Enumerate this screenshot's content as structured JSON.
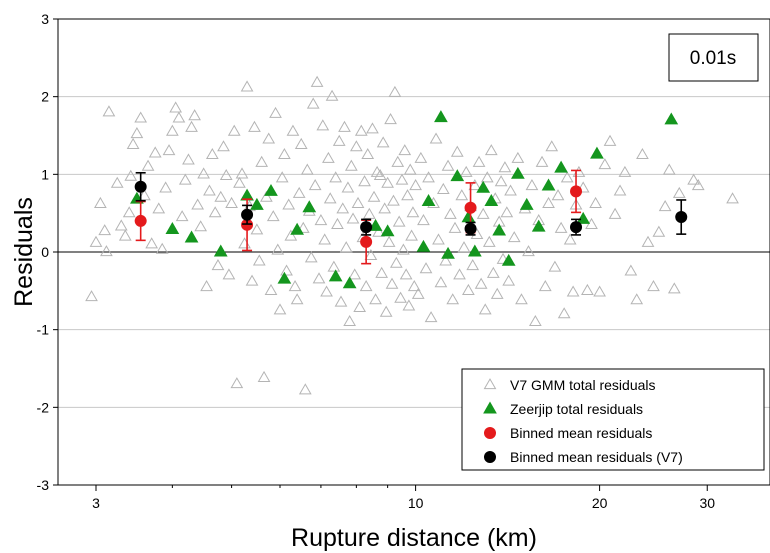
{
  "chart_data": {
    "type": "scatter",
    "period_label": "0.01s",
    "xlabel": "Rupture distance (km)",
    "ylabel": "Residuals",
    "x_scale": "log",
    "xlim": [
      2.6,
      38
    ],
    "ylim": [
      -3,
      3
    ],
    "x_ticks": [
      3,
      10,
      20,
      30
    ],
    "x_tick_labels": [
      "3",
      "10",
      "20",
      "30"
    ],
    "y_ticks": [
      -3,
      -2,
      -1,
      0,
      1,
      2,
      3
    ],
    "y_tick_labels": [
      "-3",
      "-2",
      "-1",
      "0",
      "1",
      "2",
      "3"
    ],
    "grid": "horizontal",
    "legend_position": "bottom-right",
    "legend": [
      {
        "label": "V7 GMM total residuals",
        "marker": "open-triangle",
        "color": "#b4b4b4"
      },
      {
        "label": "Zeerjip total residuals",
        "marker": "filled-triangle",
        "color": "#14961e"
      },
      {
        "label": "Binned mean residuals",
        "marker": "circle",
        "color": "#e41a1c"
      },
      {
        "label": "Binned mean residuals (V7)",
        "marker": "circle",
        "color": "#000000"
      }
    ],
    "series": [
      {
        "name": "Zeerjip total residuals",
        "style": "filled-triangle",
        "color": "#14961e",
        "points": [
          [
            3.5,
            0.68
          ],
          [
            4.0,
            0.29
          ],
          [
            4.3,
            0.18
          ],
          [
            4.8,
            0.0
          ],
          [
            5.3,
            0.72
          ],
          [
            5.5,
            0.6
          ],
          [
            5.8,
            0.78
          ],
          [
            6.1,
            -0.35
          ],
          [
            6.4,
            0.28
          ],
          [
            6.7,
            0.57
          ],
          [
            7.4,
            -0.32
          ],
          [
            7.8,
            -0.41
          ],
          [
            8.6,
            0.33
          ],
          [
            9.0,
            0.26
          ],
          [
            10.3,
            0.06
          ],
          [
            10.5,
            0.65
          ],
          [
            11.0,
            1.73
          ],
          [
            11.3,
            -0.03
          ],
          [
            11.7,
            0.97
          ],
          [
            12.2,
            0.44
          ],
          [
            12.5,
            0.0
          ],
          [
            12.9,
            0.82
          ],
          [
            13.3,
            0.65
          ],
          [
            13.7,
            0.27
          ],
          [
            14.2,
            -0.12
          ],
          [
            14.7,
            1.0
          ],
          [
            15.2,
            0.6
          ],
          [
            15.9,
            0.32
          ],
          [
            16.5,
            0.85
          ],
          [
            17.3,
            1.08
          ],
          [
            18.8,
            0.42
          ],
          [
            19.8,
            1.26
          ],
          [
            26.2,
            1.7
          ]
        ]
      },
      {
        "name": "Binned mean residuals",
        "style": "circle-errorbar",
        "color": "#e41a1c",
        "points": [
          {
            "x": 3.55,
            "y": 0.4,
            "err": 0.25
          },
          {
            "x": 5.3,
            "y": 0.35,
            "err": 0.33
          },
          {
            "x": 8.3,
            "y": 0.13,
            "err": 0.28
          },
          {
            "x": 12.3,
            "y": 0.57,
            "err": 0.32
          },
          {
            "x": 18.3,
            "y": 0.78,
            "err": 0.27
          }
        ]
      },
      {
        "name": "Binned mean residuals (V7)",
        "style": "circle-errorbar",
        "color": "#000000",
        "points": [
          {
            "x": 3.55,
            "y": 0.84,
            "err": 0.18
          },
          {
            "x": 5.3,
            "y": 0.48,
            "err": 0.12
          },
          {
            "x": 8.3,
            "y": 0.32,
            "err": 0.1
          },
          {
            "x": 12.3,
            "y": 0.3,
            "err": 0.08
          },
          {
            "x": 18.3,
            "y": 0.32,
            "err": 0.1
          },
          {
            "x": 27.2,
            "y": 0.45,
            "err": 0.22
          }
        ]
      },
      {
        "name": "V7 GMM total residuals",
        "style": "open-triangle",
        "color": "#b4b4b4",
        "points": [
          [
            2.95,
            -0.58
          ],
          [
            3.0,
            0.12
          ],
          [
            3.05,
            0.62
          ],
          [
            3.1,
            0.27
          ],
          [
            3.12,
            0.0
          ],
          [
            3.15,
            1.8
          ],
          [
            3.25,
            0.88
          ],
          [
            3.3,
            0.33
          ],
          [
            3.35,
            0.2
          ],
          [
            3.4,
            0.5
          ],
          [
            3.42,
            0.97
          ],
          [
            3.45,
            1.38
          ],
          [
            3.5,
            1.52
          ],
          [
            3.55,
            1.72
          ],
          [
            3.6,
            0.72
          ],
          [
            3.65,
            1.1
          ],
          [
            3.7,
            0.1
          ],
          [
            3.75,
            1.27
          ],
          [
            3.8,
            0.55
          ],
          [
            3.85,
            0.03
          ],
          [
            3.9,
            0.82
          ],
          [
            3.95,
            1.3
          ],
          [
            4.0,
            1.55
          ],
          [
            4.05,
            1.85
          ],
          [
            4.1,
            1.72
          ],
          [
            4.15,
            0.45
          ],
          [
            4.2,
            0.92
          ],
          [
            4.25,
            1.18
          ],
          [
            4.3,
            1.6
          ],
          [
            4.35,
            1.75
          ],
          [
            4.4,
            0.6
          ],
          [
            4.45,
            0.32
          ],
          [
            4.5,
            1.0
          ],
          [
            4.55,
            -0.45
          ],
          [
            4.6,
            0.78
          ],
          [
            4.65,
            1.25
          ],
          [
            4.7,
            0.5
          ],
          [
            4.75,
            -0.18
          ],
          [
            4.8,
            0.7
          ],
          [
            4.85,
            1.35
          ],
          [
            4.9,
            0.98
          ],
          [
            4.95,
            -0.3
          ],
          [
            5.0,
            0.62
          ],
          [
            5.05,
            1.55
          ],
          [
            5.1,
            -1.7
          ],
          [
            5.15,
            0.88
          ],
          [
            5.2,
            1.0
          ],
          [
            5.25,
            0.1
          ],
          [
            5.3,
            2.12
          ],
          [
            5.35,
            0.58
          ],
          [
            5.4,
            -0.38
          ],
          [
            5.45,
            1.6
          ],
          [
            5.5,
            0.28
          ],
          [
            5.55,
            -0.12
          ],
          [
            5.6,
            1.15
          ],
          [
            5.65,
            -1.62
          ],
          [
            5.7,
            0.7
          ],
          [
            5.75,
            1.45
          ],
          [
            5.8,
            -0.5
          ],
          [
            5.85,
            0.45
          ],
          [
            5.9,
            1.78
          ],
          [
            5.95,
            0.02
          ],
          [
            6.0,
            -0.75
          ],
          [
            6.05,
            0.95
          ],
          [
            6.1,
            1.25
          ],
          [
            6.15,
            -0.25
          ],
          [
            6.2,
            0.6
          ],
          [
            6.25,
            0.2
          ],
          [
            6.3,
            1.55
          ],
          [
            6.35,
            -0.45
          ],
          [
            6.4,
            -0.62
          ],
          [
            6.45,
            0.75
          ],
          [
            6.5,
            1.38
          ],
          [
            6.55,
            0.3
          ],
          [
            6.6,
            -1.78
          ],
          [
            6.65,
            1.05
          ],
          [
            6.7,
            0.52
          ],
          [
            6.75,
            -0.08
          ],
          [
            6.8,
            1.9
          ],
          [
            6.85,
            0.85
          ],
          [
            6.9,
            2.18
          ],
          [
            6.95,
            -0.35
          ],
          [
            7.0,
            0.4
          ],
          [
            7.05,
            1.62
          ],
          [
            7.1,
            0.15
          ],
          [
            7.15,
            -0.52
          ],
          [
            7.2,
            1.2
          ],
          [
            7.25,
            0.68
          ],
          [
            7.3,
            2.0
          ],
          [
            7.35,
            -0.2
          ],
          [
            7.4,
            0.95
          ],
          [
            7.45,
            0.35
          ],
          [
            7.5,
            1.42
          ],
          [
            7.55,
            -0.65
          ],
          [
            7.6,
            0.55
          ],
          [
            7.65,
            1.6
          ],
          [
            7.7,
            0.05
          ],
          [
            7.75,
            0.82
          ],
          [
            7.8,
            -0.9
          ],
          [
            7.85,
            1.1
          ],
          [
            7.9,
            0.42
          ],
          [
            7.95,
            -0.3
          ],
          [
            8.0,
            1.35
          ],
          [
            8.05,
            0.62
          ],
          [
            8.1,
            -0.72
          ],
          [
            8.15,
            1.55
          ],
          [
            8.2,
            0.18
          ],
          [
            8.25,
            0.9
          ],
          [
            8.3,
            -0.45
          ],
          [
            8.35,
            1.25
          ],
          [
            8.4,
            0.48
          ],
          [
            8.45,
            -0.05
          ],
          [
            8.5,
            1.58
          ],
          [
            8.55,
            0.7
          ],
          [
            8.6,
            -0.62
          ],
          [
            8.65,
            1.02
          ],
          [
            8.7,
            0.25
          ],
          [
            8.75,
            0.98
          ],
          [
            8.8,
            -0.28
          ],
          [
            8.85,
            1.4
          ],
          [
            8.9,
            0.55
          ],
          [
            8.95,
            -0.78
          ],
          [
            9.0,
            0.88
          ],
          [
            9.05,
            0.12
          ],
          [
            9.1,
            1.7
          ],
          [
            9.15,
            -0.42
          ],
          [
            9.2,
            0.65
          ],
          [
            9.25,
            2.05
          ],
          [
            9.3,
            -0.15
          ],
          [
            9.35,
            1.15
          ],
          [
            9.4,
            0.38
          ],
          [
            9.45,
            -0.6
          ],
          [
            9.5,
            0.92
          ],
          [
            9.55,
            0.02
          ],
          [
            9.6,
            1.3
          ],
          [
            9.65,
            -0.3
          ],
          [
            9.7,
            0.72
          ],
          [
            9.75,
            -0.7
          ],
          [
            9.8,
            1.05
          ],
          [
            9.85,
            0.2
          ],
          [
            9.9,
            0.5
          ],
          [
            9.95,
            -0.45
          ],
          [
            10.0,
            0.85
          ],
          [
            10.1,
            -0.55
          ],
          [
            10.2,
            1.2
          ],
          [
            10.3,
            0.4
          ],
          [
            10.4,
            -0.22
          ],
          [
            10.5,
            0.95
          ],
          [
            10.6,
            -0.85
          ],
          [
            10.7,
            0.62
          ],
          [
            10.8,
            1.45
          ],
          [
            10.9,
            0.15
          ],
          [
            11.0,
            -0.4
          ],
          [
            11.1,
            0.8
          ],
          [
            11.2,
            -0.12
          ],
          [
            11.3,
            1.1
          ],
          [
            11.4,
            0.48
          ],
          [
            11.5,
            -0.62
          ],
          [
            11.6,
            0.3
          ],
          [
            11.7,
            1.28
          ],
          [
            11.8,
            -0.3
          ],
          [
            11.9,
            0.72
          ],
          [
            12.0,
            0.05
          ],
          [
            12.1,
            1.02
          ],
          [
            12.2,
            -0.5
          ],
          [
            12.3,
            0.58
          ],
          [
            12.4,
            -0.18
          ],
          [
            12.5,
            0.85
          ],
          [
            12.6,
            0.22
          ],
          [
            12.7,
            1.15
          ],
          [
            12.8,
            -0.42
          ],
          [
            12.9,
            0.48
          ],
          [
            13.0,
            -0.75
          ],
          [
            13.1,
            0.95
          ],
          [
            13.2,
            0.12
          ],
          [
            13.3,
            1.3
          ],
          [
            13.4,
            -0.28
          ],
          [
            13.5,
            0.68
          ],
          [
            13.6,
            -0.55
          ],
          [
            13.7,
            0.38
          ],
          [
            13.8,
            0.9
          ],
          [
            13.9,
            -0.1
          ],
          [
            14.0,
            1.08
          ],
          [
            14.1,
            0.5
          ],
          [
            14.2,
            -0.38
          ],
          [
            14.3,
            0.78
          ],
          [
            14.5,
            0.18
          ],
          [
            14.7,
            1.2
          ],
          [
            14.9,
            -0.62
          ],
          [
            15.1,
            0.55
          ],
          [
            15.3,
            0.0
          ],
          [
            15.5,
            0.85
          ],
          [
            15.7,
            -0.9
          ],
          [
            15.9,
            0.4
          ],
          [
            16.1,
            1.15
          ],
          [
            16.3,
            -0.45
          ],
          [
            16.5,
            0.62
          ],
          [
            16.7,
            1.35
          ],
          [
            16.9,
            -0.2
          ],
          [
            17.1,
            0.72
          ],
          [
            17.3,
            0.3
          ],
          [
            17.5,
            -0.8
          ],
          [
            17.7,
            0.95
          ],
          [
            17.9,
            0.15
          ],
          [
            18.1,
            -0.52
          ],
          [
            18.3,
            0.6
          ],
          [
            18.5,
            1.02
          ],
          [
            18.8,
            0.82
          ],
          [
            19.1,
            -0.5
          ],
          [
            19.4,
            0.35
          ],
          [
            19.7,
            0.62
          ],
          [
            20.0,
            -0.52
          ],
          [
            20.4,
            1.12
          ],
          [
            20.8,
            1.42
          ],
          [
            21.2,
            0.48
          ],
          [
            21.6,
            0.78
          ],
          [
            22.0,
            1.02
          ],
          [
            22.5,
            -0.25
          ],
          [
            23.0,
            -0.62
          ],
          [
            23.5,
            1.25
          ],
          [
            24.0,
            0.12
          ],
          [
            24.5,
            -0.45
          ],
          [
            25.0,
            0.25
          ],
          [
            25.6,
            0.58
          ],
          [
            26.0,
            1.05
          ],
          [
            26.5,
            -0.48
          ],
          [
            27.0,
            0.75
          ],
          [
            28.5,
            0.92
          ],
          [
            29.0,
            0.85
          ],
          [
            33.0,
            0.68
          ]
        ]
      }
    ]
  }
}
